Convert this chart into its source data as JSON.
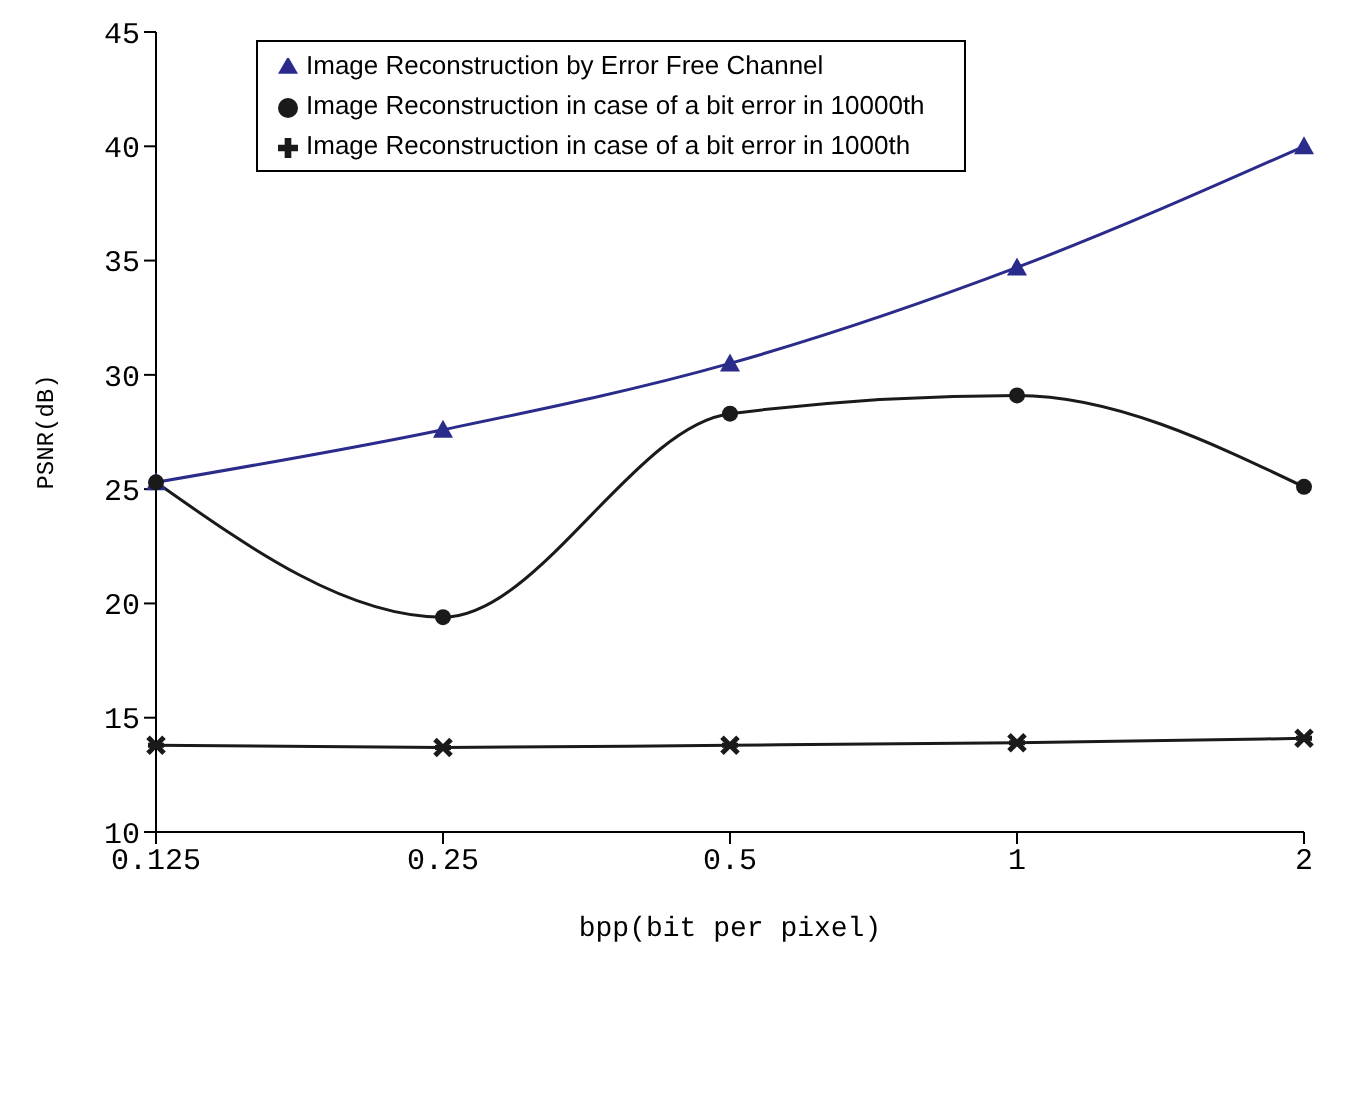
{
  "chart_data": {
    "type": "line",
    "xlabel": "bpp(bit per pixel)",
    "ylabel": "PSNR(dB)",
    "categories": [
      "0.125",
      "0.25",
      "0.5",
      "1",
      "2"
    ],
    "series": [
      {
        "name": "Image Reconstruction by Error Free Channel",
        "color": "#2b2b8c",
        "marker": "triangle",
        "values": [
          25.3,
          27.6,
          30.5,
          34.7,
          40.0
        ]
      },
      {
        "name": "Image Reconstruction in case of a bit error in 10000th",
        "color": "#1a1a1a",
        "marker": "circle",
        "values": [
          25.3,
          19.4,
          28.3,
          29.1,
          25.1
        ]
      },
      {
        "name": "Image Reconstruction in case of a bit error in 1000th",
        "color": "#1a1a1a",
        "marker": "cross",
        "values": [
          13.8,
          13.7,
          13.8,
          13.9,
          14.1
        ]
      }
    ],
    "ylim": [
      10,
      45
    ],
    "yticks": [
      10,
      15,
      20,
      25,
      30,
      35,
      40,
      45
    ],
    "grid": false,
    "legend": "top",
    "line_style": "solid"
  }
}
